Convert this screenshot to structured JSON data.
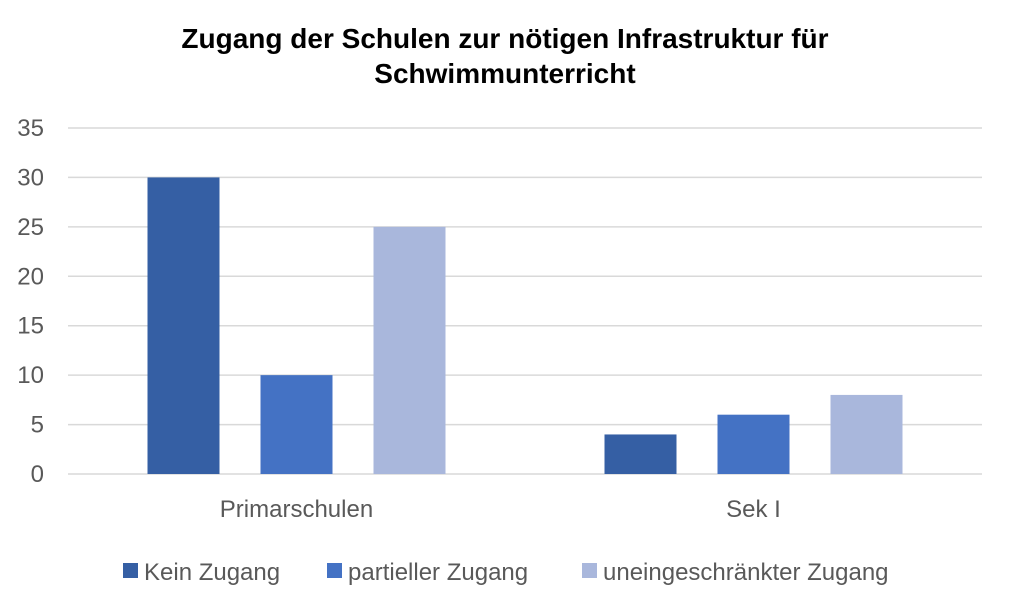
{
  "chart_data": {
    "type": "bar",
    "title_lines": [
      "Zugang der Schulen zur nötigen Infrastruktur für",
      "Schwimmunterricht"
    ],
    "categories": [
      "Primarschulen",
      "Sek I"
    ],
    "series": [
      {
        "name": "Kein Zugang",
        "values": [
          30,
          4
        ],
        "color": "#355FA4"
      },
      {
        "name": "partieller Zugang",
        "values": [
          10,
          6
        ],
        "color": "#4472C4"
      },
      {
        "name": "uneingeschränkter Zugang",
        "values": [
          25,
          8
        ],
        "color": "#A9B7DC"
      }
    ],
    "ylim": [
      0,
      35
    ],
    "yticks": [
      0,
      5,
      10,
      15,
      20,
      25,
      30,
      35
    ],
    "grid": true,
    "legend_position": "bottom",
    "gridline_color": "#D9D9D9"
  }
}
